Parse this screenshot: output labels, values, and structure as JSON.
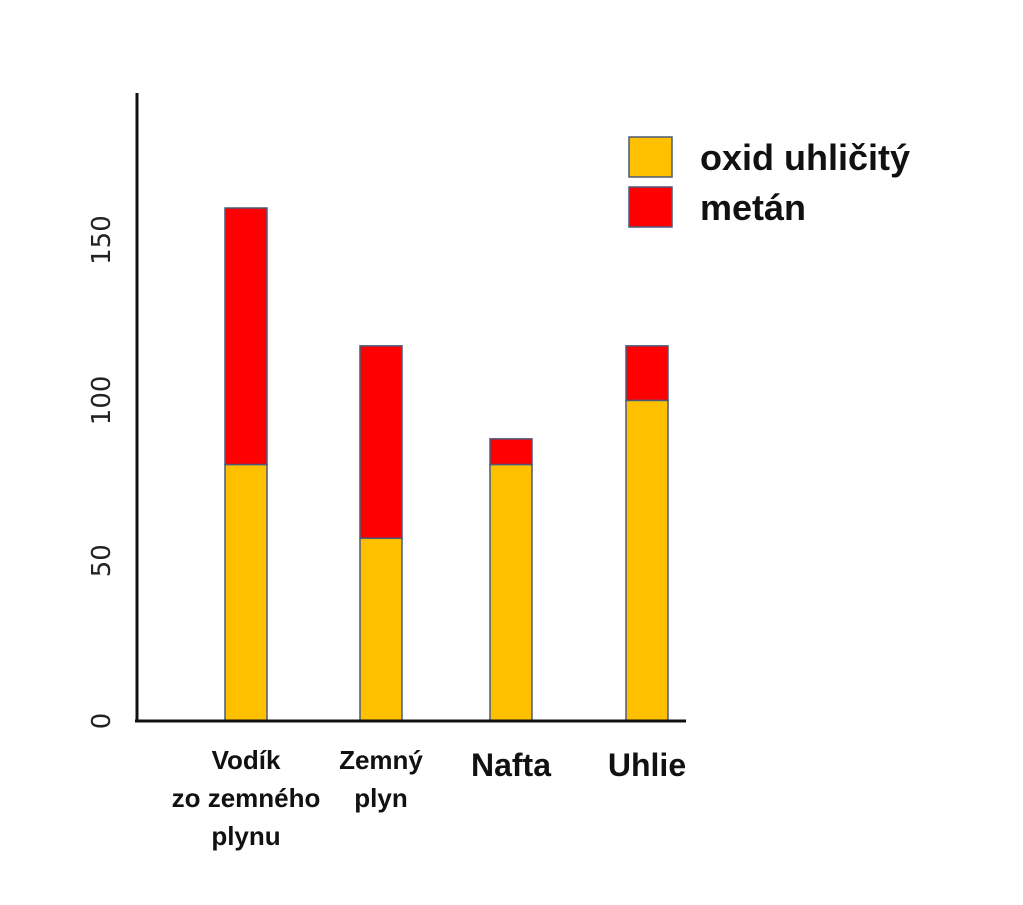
{
  "chart_data": {
    "type": "bar",
    "stacked": true,
    "categories": [
      [
        "Vodík",
        "zo zemného",
        "plynu"
      ],
      [
        "Zemný",
        "plyn"
      ],
      [
        "Nafta"
      ],
      [
        "Uhlie"
      ]
    ],
    "series": [
      {
        "name": "oxid uhličitý",
        "color": "#FFC000",
        "values": [
          80,
          57,
          80,
          100
        ]
      },
      {
        "name": "metán",
        "color": "#FF0000",
        "values": [
          80,
          60,
          8,
          17
        ]
      }
    ],
    "yticks": [
      0,
      50,
      100,
      150
    ],
    "ylim": [
      0,
      196
    ],
    "grid": false,
    "legend_position": "top-right"
  }
}
